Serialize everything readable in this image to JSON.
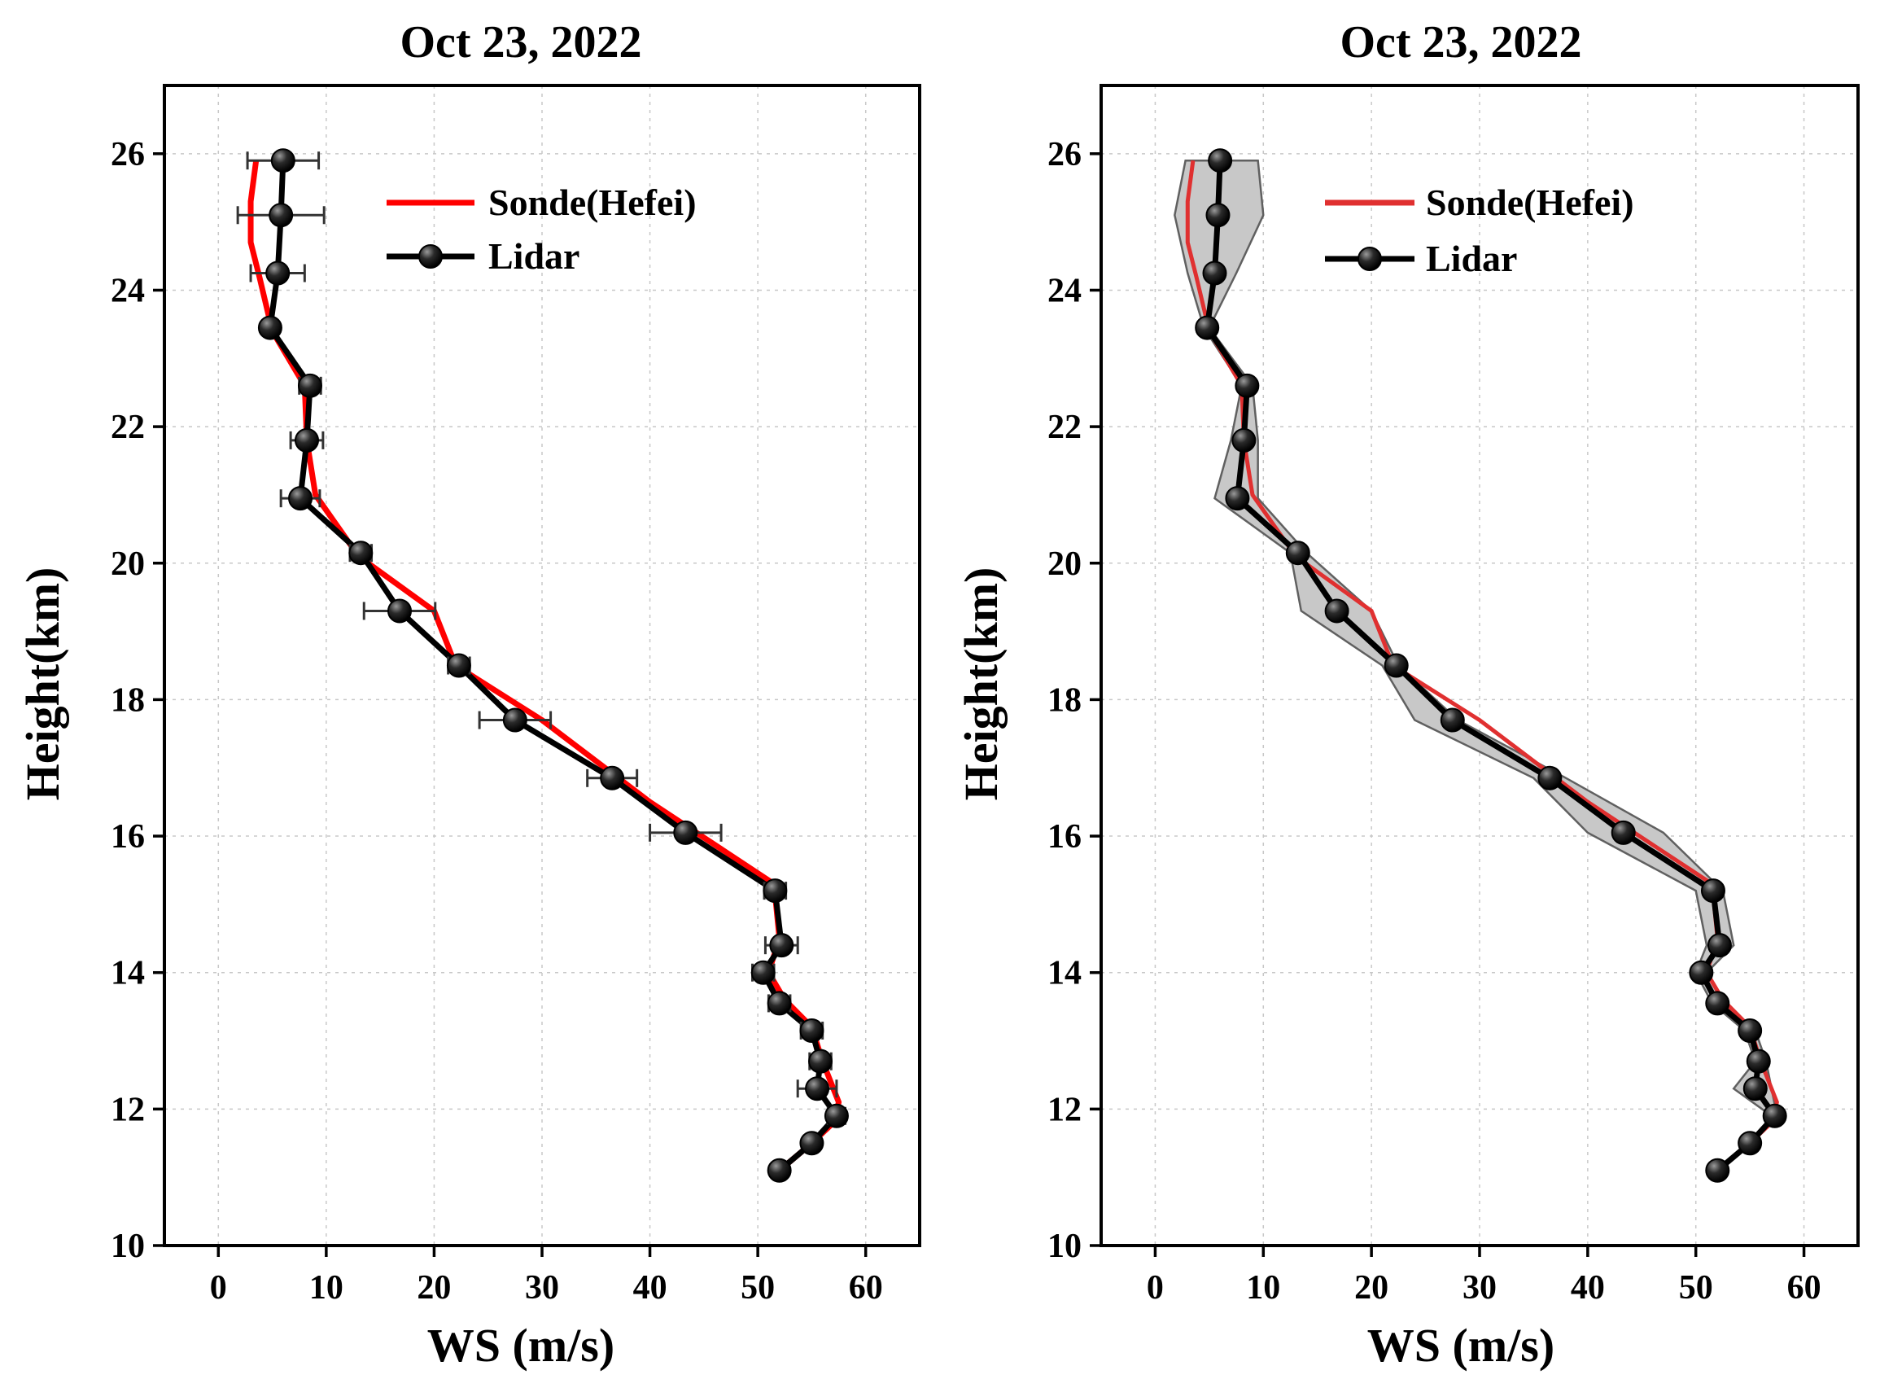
{
  "figure": {
    "panels": [
      "left",
      "right"
    ]
  },
  "chart_data": [
    {
      "type": "line",
      "title": "Oct 23, 2022",
      "xlabel": "WS (m/s)",
      "ylabel": "Height(km)",
      "xlim": [
        -5,
        65
      ],
      "ylim": [
        10,
        27
      ],
      "xticks": [
        0,
        10,
        20,
        30,
        40,
        50,
        60
      ],
      "yticks": [
        10,
        12,
        14,
        16,
        18,
        20,
        22,
        24,
        26
      ],
      "grid": true,
      "legend": {
        "position": "top-right",
        "entries": [
          "Sonde(Hefei)",
          "Lidar"
        ]
      },
      "series": [
        {
          "name": "Sonde(Hefei)",
          "color": "#ff0000",
          "style": "line",
          "points": [
            [
              3.5,
              25.9
            ],
            [
              3.0,
              25.3
            ],
            [
              3.0,
              24.7
            ],
            [
              3.8,
              24.2
            ],
            [
              5.0,
              23.4
            ],
            [
              8.0,
              22.6
            ],
            [
              8.2,
              21.8
            ],
            [
              9.0,
              21.0
            ],
            [
              13.0,
              20.1
            ],
            [
              20.0,
              19.3
            ],
            [
              22.0,
              18.5
            ],
            [
              30.0,
              17.7
            ],
            [
              40.0,
              16.5
            ],
            [
              51.5,
              15.3
            ],
            [
              52.0,
              14.5
            ],
            [
              51.0,
              14.0
            ],
            [
              52.5,
              13.6
            ],
            [
              55.0,
              13.2
            ],
            [
              56.0,
              12.7
            ],
            [
              57.5,
              12.1
            ],
            [
              57.0,
              11.8
            ],
            [
              55.0,
              11.5
            ],
            [
              52.0,
              11.1
            ]
          ]
        },
        {
          "name": "Lidar",
          "color": "#000000",
          "style": "line-marker",
          "x": [
            6.0,
            5.8,
            5.5,
            4.8,
            8.5,
            8.2,
            7.6,
            13.2,
            16.8,
            22.3,
            27.5,
            36.5,
            43.3,
            51.6,
            52.2,
            50.5,
            52.0,
            55.0,
            55.8,
            55.5,
            57.3,
            55.0,
            52.0
          ],
          "y": [
            25.9,
            25.1,
            24.25,
            23.45,
            22.6,
            21.8,
            20.95,
            20.15,
            19.3,
            18.5,
            17.7,
            16.85,
            16.05,
            15.2,
            14.4,
            14.0,
            13.55,
            13.15,
            12.7,
            12.3,
            11.9,
            11.5,
            11.1
          ],
          "xerr": [
            3.3,
            4.0,
            2.5,
            0,
            1.0,
            1.5,
            1.8,
            1.0,
            3.3,
            1.0,
            3.3,
            2.3,
            3.3,
            1.0,
            1.5,
            1.0,
            1.0,
            1.0,
            1.0,
            1.8,
            0.8,
            0.5,
            0.3
          ]
        }
      ]
    },
    {
      "type": "line",
      "title": "Oct 23, 2022",
      "xlabel": "WS (m/s)",
      "ylabel": "Height(km)",
      "xlim": [
        -5,
        65
      ],
      "ylim": [
        10,
        27
      ],
      "xticks": [
        0,
        10,
        20,
        30,
        40,
        50,
        60
      ],
      "yticks": [
        10,
        12,
        14,
        16,
        18,
        20,
        22,
        24,
        26
      ],
      "grid": true,
      "legend": {
        "position": "top-right",
        "entries": [
          "Sonde(Hefei)",
          "Lidar"
        ]
      },
      "band": {
        "fill": "#c8c8c8",
        "stroke": "#606060",
        "lower": [
          2.8,
          1.8,
          3.0,
          4.5,
          8.0,
          7.0,
          5.5,
          12.5,
          13.5,
          21.0,
          24.0,
          35.0,
          40.0,
          50.0,
          51.0,
          50.0,
          51.5,
          54.5,
          55.5,
          53.5,
          57.0,
          55.0,
          52.0
        ],
        "upper": [
          9.5,
          10.0,
          7.5,
          5.0,
          9.0,
          9.5,
          9.5,
          14.0,
          20.0,
          22.5,
          28.0,
          38.0,
          47.0,
          52.5,
          53.5,
          51.0,
          52.5,
          55.5,
          56.5,
          57.0,
          57.5,
          55.0,
          52.0
        ]
      },
      "series": [
        {
          "name": "Sonde(Hefei)",
          "color": "#e03030",
          "style": "line",
          "points": [
            [
              3.5,
              25.9
            ],
            [
              3.0,
              25.3
            ],
            [
              3.0,
              24.7
            ],
            [
              3.8,
              24.2
            ],
            [
              5.0,
              23.4
            ],
            [
              8.0,
              22.6
            ],
            [
              8.2,
              21.8
            ],
            [
              9.0,
              21.0
            ],
            [
              13.0,
              20.1
            ],
            [
              20.0,
              19.3
            ],
            [
              22.0,
              18.5
            ],
            [
              30.0,
              17.7
            ],
            [
              40.0,
              16.5
            ],
            [
              51.5,
              15.3
            ],
            [
              52.0,
              14.5
            ],
            [
              51.0,
              14.0
            ],
            [
              52.5,
              13.6
            ],
            [
              55.0,
              13.2
            ],
            [
              56.0,
              12.7
            ],
            [
              57.5,
              12.1
            ],
            [
              57.0,
              11.8
            ],
            [
              55.0,
              11.5
            ],
            [
              52.0,
              11.1
            ]
          ]
        },
        {
          "name": "Lidar",
          "color": "#000000",
          "style": "line-marker",
          "x": [
            6.0,
            5.8,
            5.5,
            4.8,
            8.5,
            8.2,
            7.6,
            13.2,
            16.8,
            22.3,
            27.5,
            36.5,
            43.3,
            51.6,
            52.2,
            50.5,
            52.0,
            55.0,
            55.8,
            55.5,
            57.3,
            55.0,
            52.0
          ],
          "y": [
            25.9,
            25.1,
            24.25,
            23.45,
            22.6,
            21.8,
            20.95,
            20.15,
            19.3,
            18.5,
            17.7,
            16.85,
            16.05,
            15.2,
            14.4,
            14.0,
            13.55,
            13.15,
            12.7,
            12.3,
            11.9,
            11.5,
            11.1
          ]
        }
      ]
    }
  ]
}
